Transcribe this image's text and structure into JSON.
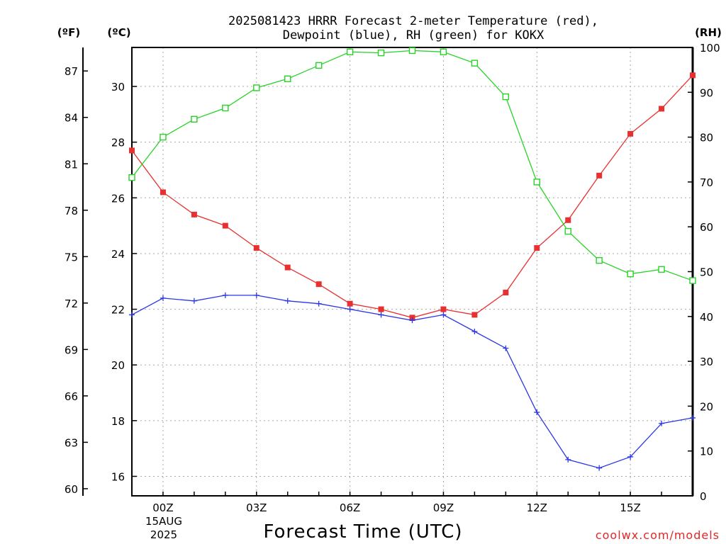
{
  "title_line1": "2025081423 HRRR Forecast 2-meter Temperature (red),",
  "title_line2": "Dewpoint (blue), RH (green) for KOKX",
  "unit_f": "(ºF)",
  "unit_c": "(ºC)",
  "unit_rh": "(RH)",
  "xaxis_title": "Forecast Time (UTC)",
  "date_line1": "15AUG",
  "date_line2": "2025",
  "credit": "coolwx.com/models",
  "credit_color": "#e02828",
  "chart_data": {
    "type": "line",
    "x": [
      "23Z",
      "00Z",
      "01Z",
      "02Z",
      "03Z",
      "04Z",
      "05Z",
      "06Z",
      "07Z",
      "08Z",
      "09Z",
      "10Z",
      "11Z",
      "12Z",
      "13Z",
      "14Z",
      "15Z",
      "16Z",
      "17Z"
    ],
    "x_tick_labels": [
      "00Z",
      "03Z",
      "06Z",
      "09Z",
      "12Z",
      "15Z"
    ],
    "x_tick_indices": [
      1,
      4,
      7,
      10,
      13,
      16
    ],
    "y_left_c": {
      "label": "(ºC)",
      "range": [
        15.3,
        31.4
      ],
      "ticks": [
        16,
        18,
        20,
        22,
        24,
        26,
        28,
        30
      ]
    },
    "y_left_f": {
      "label": "(ºF)",
      "ticks": [
        60,
        63,
        66,
        69,
        72,
        75,
        78,
        81,
        84,
        87
      ]
    },
    "y_right": {
      "label": "(RH)",
      "range": [
        0,
        100
      ],
      "ticks": [
        0,
        10,
        20,
        30,
        40,
        50,
        60,
        70,
        80,
        90,
        100
      ]
    },
    "series": [
      {
        "name": "Temperature",
        "color": "#e83030",
        "marker": "filled-square",
        "axis": "c",
        "values": [
          27.7,
          26.2,
          25.4,
          25.0,
          24.2,
          23.5,
          22.9,
          22.2,
          22.0,
          21.7,
          22.0,
          21.8,
          22.6,
          24.2,
          25.2,
          26.8,
          28.3,
          29.2,
          30.4
        ]
      },
      {
        "name": "Dewpoint",
        "color": "#2b36e8",
        "marker": "plus",
        "axis": "c",
        "values": [
          21.8,
          22.4,
          22.3,
          22.5,
          22.5,
          22.3,
          22.2,
          22.0,
          21.8,
          21.6,
          21.8,
          21.2,
          20.6,
          18.3,
          16.6,
          16.3,
          16.7,
          17.9,
          18.1
        ]
      },
      {
        "name": "RH",
        "color": "#27d327",
        "marker": "open-square",
        "axis": "rh",
        "values": [
          71,
          80,
          84,
          86.5,
          91,
          93,
          96,
          99,
          98.8,
          99.3,
          99,
          96.5,
          89,
          70,
          59,
          52.5,
          49.5,
          50.5,
          48
        ]
      }
    ],
    "grid": true
  }
}
